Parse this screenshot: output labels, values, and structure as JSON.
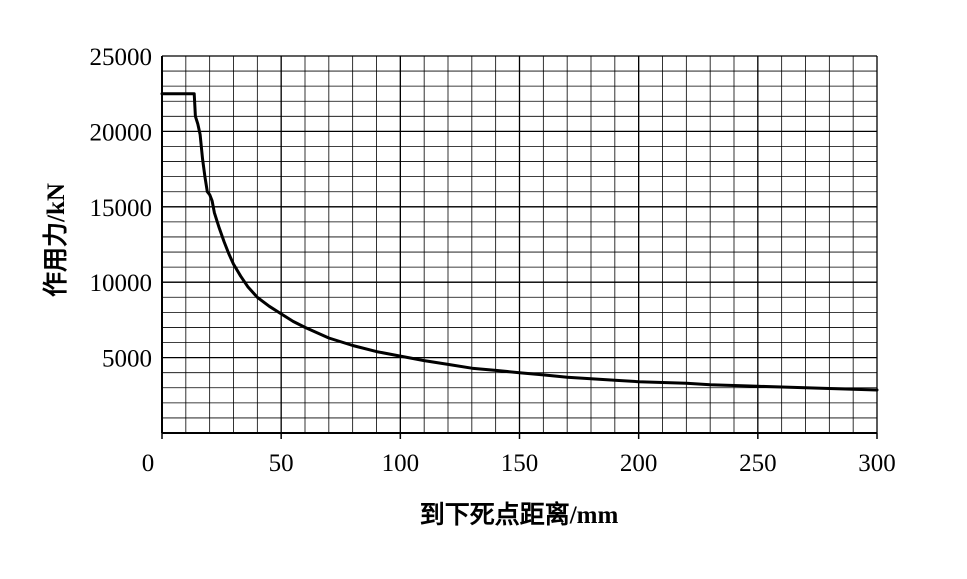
{
  "chart_data": {
    "type": "line",
    "title": "",
    "xlabel": "到下死点距离/mm",
    "ylabel": "作用力/kN",
    "xlim": [
      0,
      300
    ],
    "ylim": [
      0,
      25000
    ],
    "xticks": [
      0,
      50,
      100,
      150,
      200,
      250,
      300
    ],
    "yticks": [
      5000,
      10000,
      15000,
      20000,
      25000
    ],
    "xtick_labels": [
      "0",
      "50",
      "100",
      "150",
      "200",
      "250",
      "300"
    ],
    "ytick_labels": [
      "5000",
      "10000",
      "15000",
      "20000",
      "25000"
    ],
    "minor_x_step": 10,
    "minor_y_step": 1000,
    "grid": true,
    "line_color": "#000000",
    "series": [
      {
        "x": [
          0,
          5,
          10,
          13,
          13.5,
          14,
          15,
          16,
          17,
          18,
          19,
          20,
          21,
          22,
          24,
          26,
          28,
          30,
          33,
          36,
          40,
          45,
          50,
          55,
          60,
          70,
          80,
          90,
          100,
          110,
          120,
          130,
          140,
          150,
          160,
          170,
          180,
          190,
          200,
          210,
          220,
          230,
          240,
          250,
          260,
          270,
          280,
          290,
          300
        ],
        "y": [
          22500,
          22500,
          22500,
          22500,
          22500,
          21000,
          20500,
          19800,
          18200,
          17000,
          16000,
          15800,
          15400,
          14600,
          13600,
          12700,
          11900,
          11200,
          10400,
          9700,
          9000,
          8400,
          7900,
          7400,
          7000,
          6300,
          5800,
          5400,
          5100,
          4800,
          4550,
          4300,
          4150,
          4000,
          3850,
          3700,
          3600,
          3500,
          3400,
          3350,
          3300,
          3200,
          3150,
          3100,
          3050,
          3000,
          2950,
          2900,
          2850
        ]
      }
    ]
  }
}
